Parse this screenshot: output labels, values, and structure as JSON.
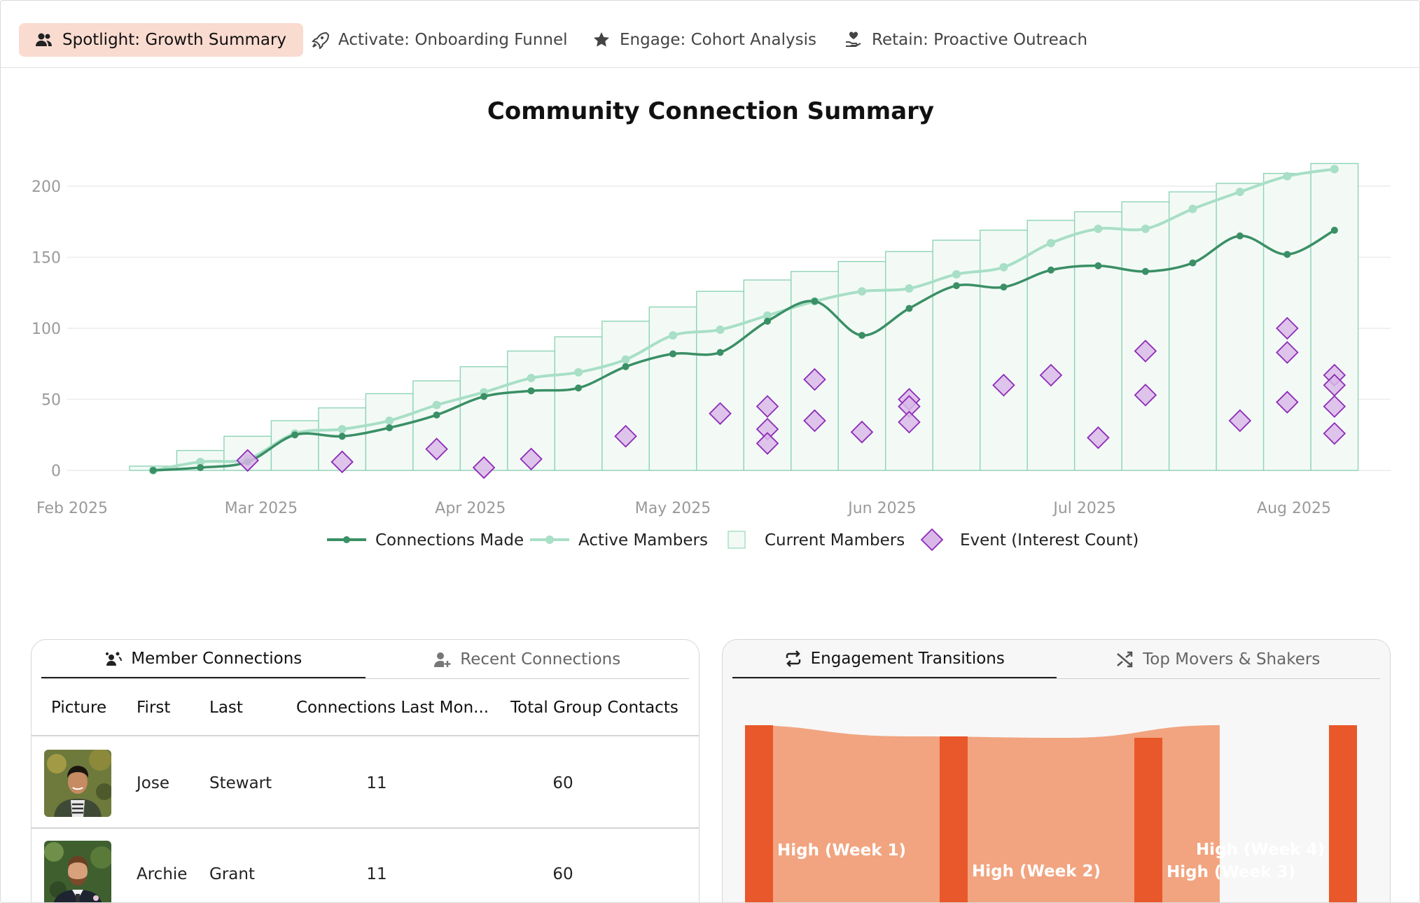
{
  "top_tabs": [
    {
      "label": "Spotlight: Growth Summary",
      "icon": "users-icon",
      "active": true
    },
    {
      "label": "Activate: Onboarding Funnel",
      "icon": "rocket-icon",
      "active": false
    },
    {
      "label": "Engage: Cohort Analysis",
      "icon": "star-icon",
      "active": false
    },
    {
      "label": "Retain: Proactive Outreach",
      "icon": "hand-heart-icon",
      "active": false
    }
  ],
  "chart_data": {
    "type": "line",
    "title": "Community Connection Summary",
    "xlabel": "",
    "ylabel": "",
    "ylim": [
      0,
      210
    ],
    "yticks": [
      "0",
      "50",
      "100",
      "150",
      "200"
    ],
    "xticks": [
      "Feb 2025",
      "Mar 2025",
      "Apr 2025",
      "May 2025",
      "Jun 2025",
      "Jul 2025",
      "Aug 2025"
    ],
    "grid": true,
    "legend_position": "bottom",
    "bars": {
      "name": "Current Mambers",
      "color": "#8fd3b6",
      "x": [
        "2025-02-13",
        "2025-02-20",
        "2025-02-27",
        "2025-03-06",
        "2025-03-13",
        "2025-03-20",
        "2025-03-27",
        "2025-04-03",
        "2025-04-10",
        "2025-04-17",
        "2025-04-24",
        "2025-05-01",
        "2025-05-08",
        "2025-05-15",
        "2025-05-22",
        "2025-05-29",
        "2025-06-05",
        "2025-06-12",
        "2025-06-19",
        "2025-06-26",
        "2025-07-03",
        "2025-07-10",
        "2025-07-17",
        "2025-07-24",
        "2025-07-31",
        "2025-08-07"
      ],
      "values": [
        3,
        14,
        24,
        35,
        44,
        54,
        63,
        73,
        84,
        94,
        105,
        115,
        126,
        134,
        140,
        147,
        154,
        162,
        169,
        176,
        182,
        189,
        196,
        202,
        209,
        216
      ]
    },
    "series": [
      {
        "name": "Connections Made",
        "color": "#3a8f65",
        "x": [
          "2025-02-13",
          "2025-02-20",
          "2025-02-27",
          "2025-03-06",
          "2025-03-13",
          "2025-03-20",
          "2025-03-27",
          "2025-04-03",
          "2025-04-10",
          "2025-04-17",
          "2025-04-24",
          "2025-05-01",
          "2025-05-08",
          "2025-05-15",
          "2025-05-22",
          "2025-05-29",
          "2025-06-05",
          "2025-06-12",
          "2025-06-19",
          "2025-06-26",
          "2025-07-03",
          "2025-07-10",
          "2025-07-17",
          "2025-07-24",
          "2025-07-31",
          "2025-08-07"
        ],
        "values": [
          0,
          2,
          6,
          25,
          24,
          30,
          39,
          52,
          56,
          58,
          73,
          82,
          83,
          105,
          119,
          95,
          114,
          130,
          129,
          141,
          144,
          140,
          146,
          165,
          152,
          169
        ]
      },
      {
        "name": "Active Mambers",
        "color": "#a8dfc6",
        "x": [
          "2025-02-13",
          "2025-02-20",
          "2025-02-27",
          "2025-03-06",
          "2025-03-13",
          "2025-03-20",
          "2025-03-27",
          "2025-04-03",
          "2025-04-10",
          "2025-04-17",
          "2025-04-24",
          "2025-05-01",
          "2025-05-08",
          "2025-05-15",
          "2025-05-22",
          "2025-05-29",
          "2025-06-05",
          "2025-06-12",
          "2025-06-19",
          "2025-06-26",
          "2025-07-03",
          "2025-07-10",
          "2025-07-17",
          "2025-07-24",
          "2025-07-31",
          "2025-08-07"
        ],
        "values": [
          0,
          6,
          8,
          26,
          29,
          35,
          46,
          55,
          65,
          69,
          78,
          95,
          99,
          109,
          119,
          126,
          128,
          138,
          143,
          160,
          170,
          170,
          184,
          196,
          207,
          212
        ]
      }
    ],
    "events": {
      "name": "Event (Interest Count)",
      "color": "#8e2bb8",
      "fill": "#d9b8e8",
      "points": [
        {
          "x": "2025-02-27",
          "y": 7
        },
        {
          "x": "2025-03-13",
          "y": 6
        },
        {
          "x": "2025-03-27",
          "y": 15
        },
        {
          "x": "2025-04-03",
          "y": 2
        },
        {
          "x": "2025-04-10",
          "y": 8
        },
        {
          "x": "2025-04-24",
          "y": 24
        },
        {
          "x": "2025-05-08",
          "y": 40
        },
        {
          "x": "2025-05-15",
          "y": 45
        },
        {
          "x": "2025-05-15",
          "y": 29
        },
        {
          "x": "2025-05-15",
          "y": 19
        },
        {
          "x": "2025-05-22",
          "y": 64
        },
        {
          "x": "2025-05-22",
          "y": 35
        },
        {
          "x": "2025-05-29",
          "y": 27
        },
        {
          "x": "2025-06-05",
          "y": 50
        },
        {
          "x": "2025-06-05",
          "y": 45
        },
        {
          "x": "2025-06-05",
          "y": 34
        },
        {
          "x": "2025-06-19",
          "y": 60
        },
        {
          "x": "2025-06-26",
          "y": 67
        },
        {
          "x": "2025-07-03",
          "y": 23
        },
        {
          "x": "2025-07-10",
          "y": 84
        },
        {
          "x": "2025-07-10",
          "y": 53
        },
        {
          "x": "2025-07-24",
          "y": 35
        },
        {
          "x": "2025-07-31",
          "y": 100
        },
        {
          "x": "2025-07-31",
          "y": 83
        },
        {
          "x": "2025-07-31",
          "y": 48
        },
        {
          "x": "2025-08-07",
          "y": 67
        },
        {
          "x": "2025-08-07",
          "y": 60
        },
        {
          "x": "2025-08-07",
          "y": 45
        },
        {
          "x": "2025-08-07",
          "y": 26
        }
      ]
    }
  },
  "member_panel": {
    "tabs": [
      {
        "label": "Member Connections",
        "icon": "user-network-icon",
        "active": true
      },
      {
        "label": "Recent Connections",
        "icon": "user-plus-icon",
        "active": false
      }
    ],
    "columns": [
      "Picture",
      "First",
      "Last",
      "Connections Last Mon...",
      "Total Group Contacts"
    ],
    "rows": [
      {
        "first": "Jose",
        "last": "Stewart",
        "connections_last_month": "11",
        "total_group_contacts": "60"
      },
      {
        "first": "Archie",
        "last": "Grant",
        "connections_last_month": "11",
        "total_group_contacts": "60"
      }
    ]
  },
  "engagement_panel": {
    "tabs": [
      {
        "label": "Engagement Transitions",
        "icon": "repeat-icon",
        "active": true
      },
      {
        "label": "Top Movers & Shakers",
        "icon": "shuffle-icon",
        "active": false
      }
    ],
    "sankey_labels": [
      "High (Week 1)",
      "High (Week 2)",
      "High (Week 3)",
      "High (Week 4)"
    ],
    "node_color": "#e8582a",
    "link_color": "#f1a47f"
  }
}
